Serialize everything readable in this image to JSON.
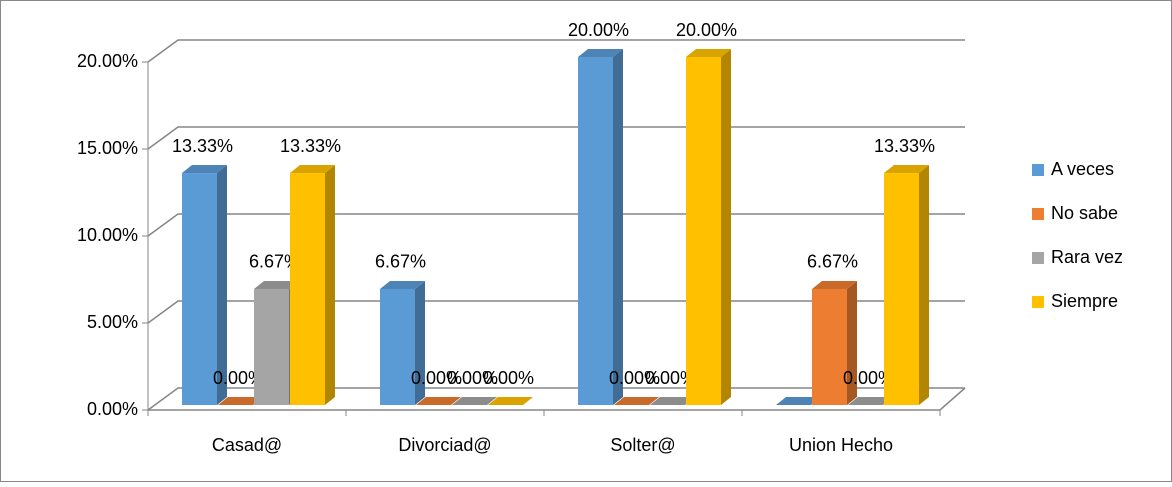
{
  "chart_data": {
    "type": "bar3d",
    "categories": [
      "Casad@",
      "Divorciad@",
      "Solter@",
      "Union Hecho"
    ],
    "series": [
      {
        "name": "A veces",
        "color": "#5b9bd5",
        "values": [
          13.33,
          6.67,
          20,
          0
        ],
        "value_labels": [
          "13.33%",
          "6.67%",
          "20.00%",
          null
        ]
      },
      {
        "name": "No sabe",
        "color": "#ed7d31",
        "values": [
          0,
          0,
          0,
          6.67
        ],
        "value_labels": [
          "0.00%",
          "0.00%",
          "0.00%",
          "6.67%"
        ]
      },
      {
        "name": "Rara vez",
        "color": "#a5a5a5",
        "values": [
          6.67,
          0,
          0,
          0
        ],
        "value_labels": [
          "6.67%",
          "0.00%",
          "0.00%",
          "0.00%"
        ]
      },
      {
        "name": "Siempre",
        "color": "#ffc000",
        "values": [
          13.33,
          0,
          20,
          13.33
        ],
        "value_labels": [
          "13.33%",
          "0.00%",
          "20.00%",
          "13.33%"
        ]
      }
    ],
    "ylim": [
      0,
      20
    ],
    "yticks": [
      {
        "value": 0,
        "label": "0.00%"
      },
      {
        "value": 5,
        "label": "5.00%"
      },
      {
        "value": 10,
        "label": "10.00%"
      },
      {
        "value": 15,
        "label": "15.00%"
      },
      {
        "value": 20,
        "label": "20.00%"
      }
    ],
    "grid": true,
    "legend": "right"
  }
}
